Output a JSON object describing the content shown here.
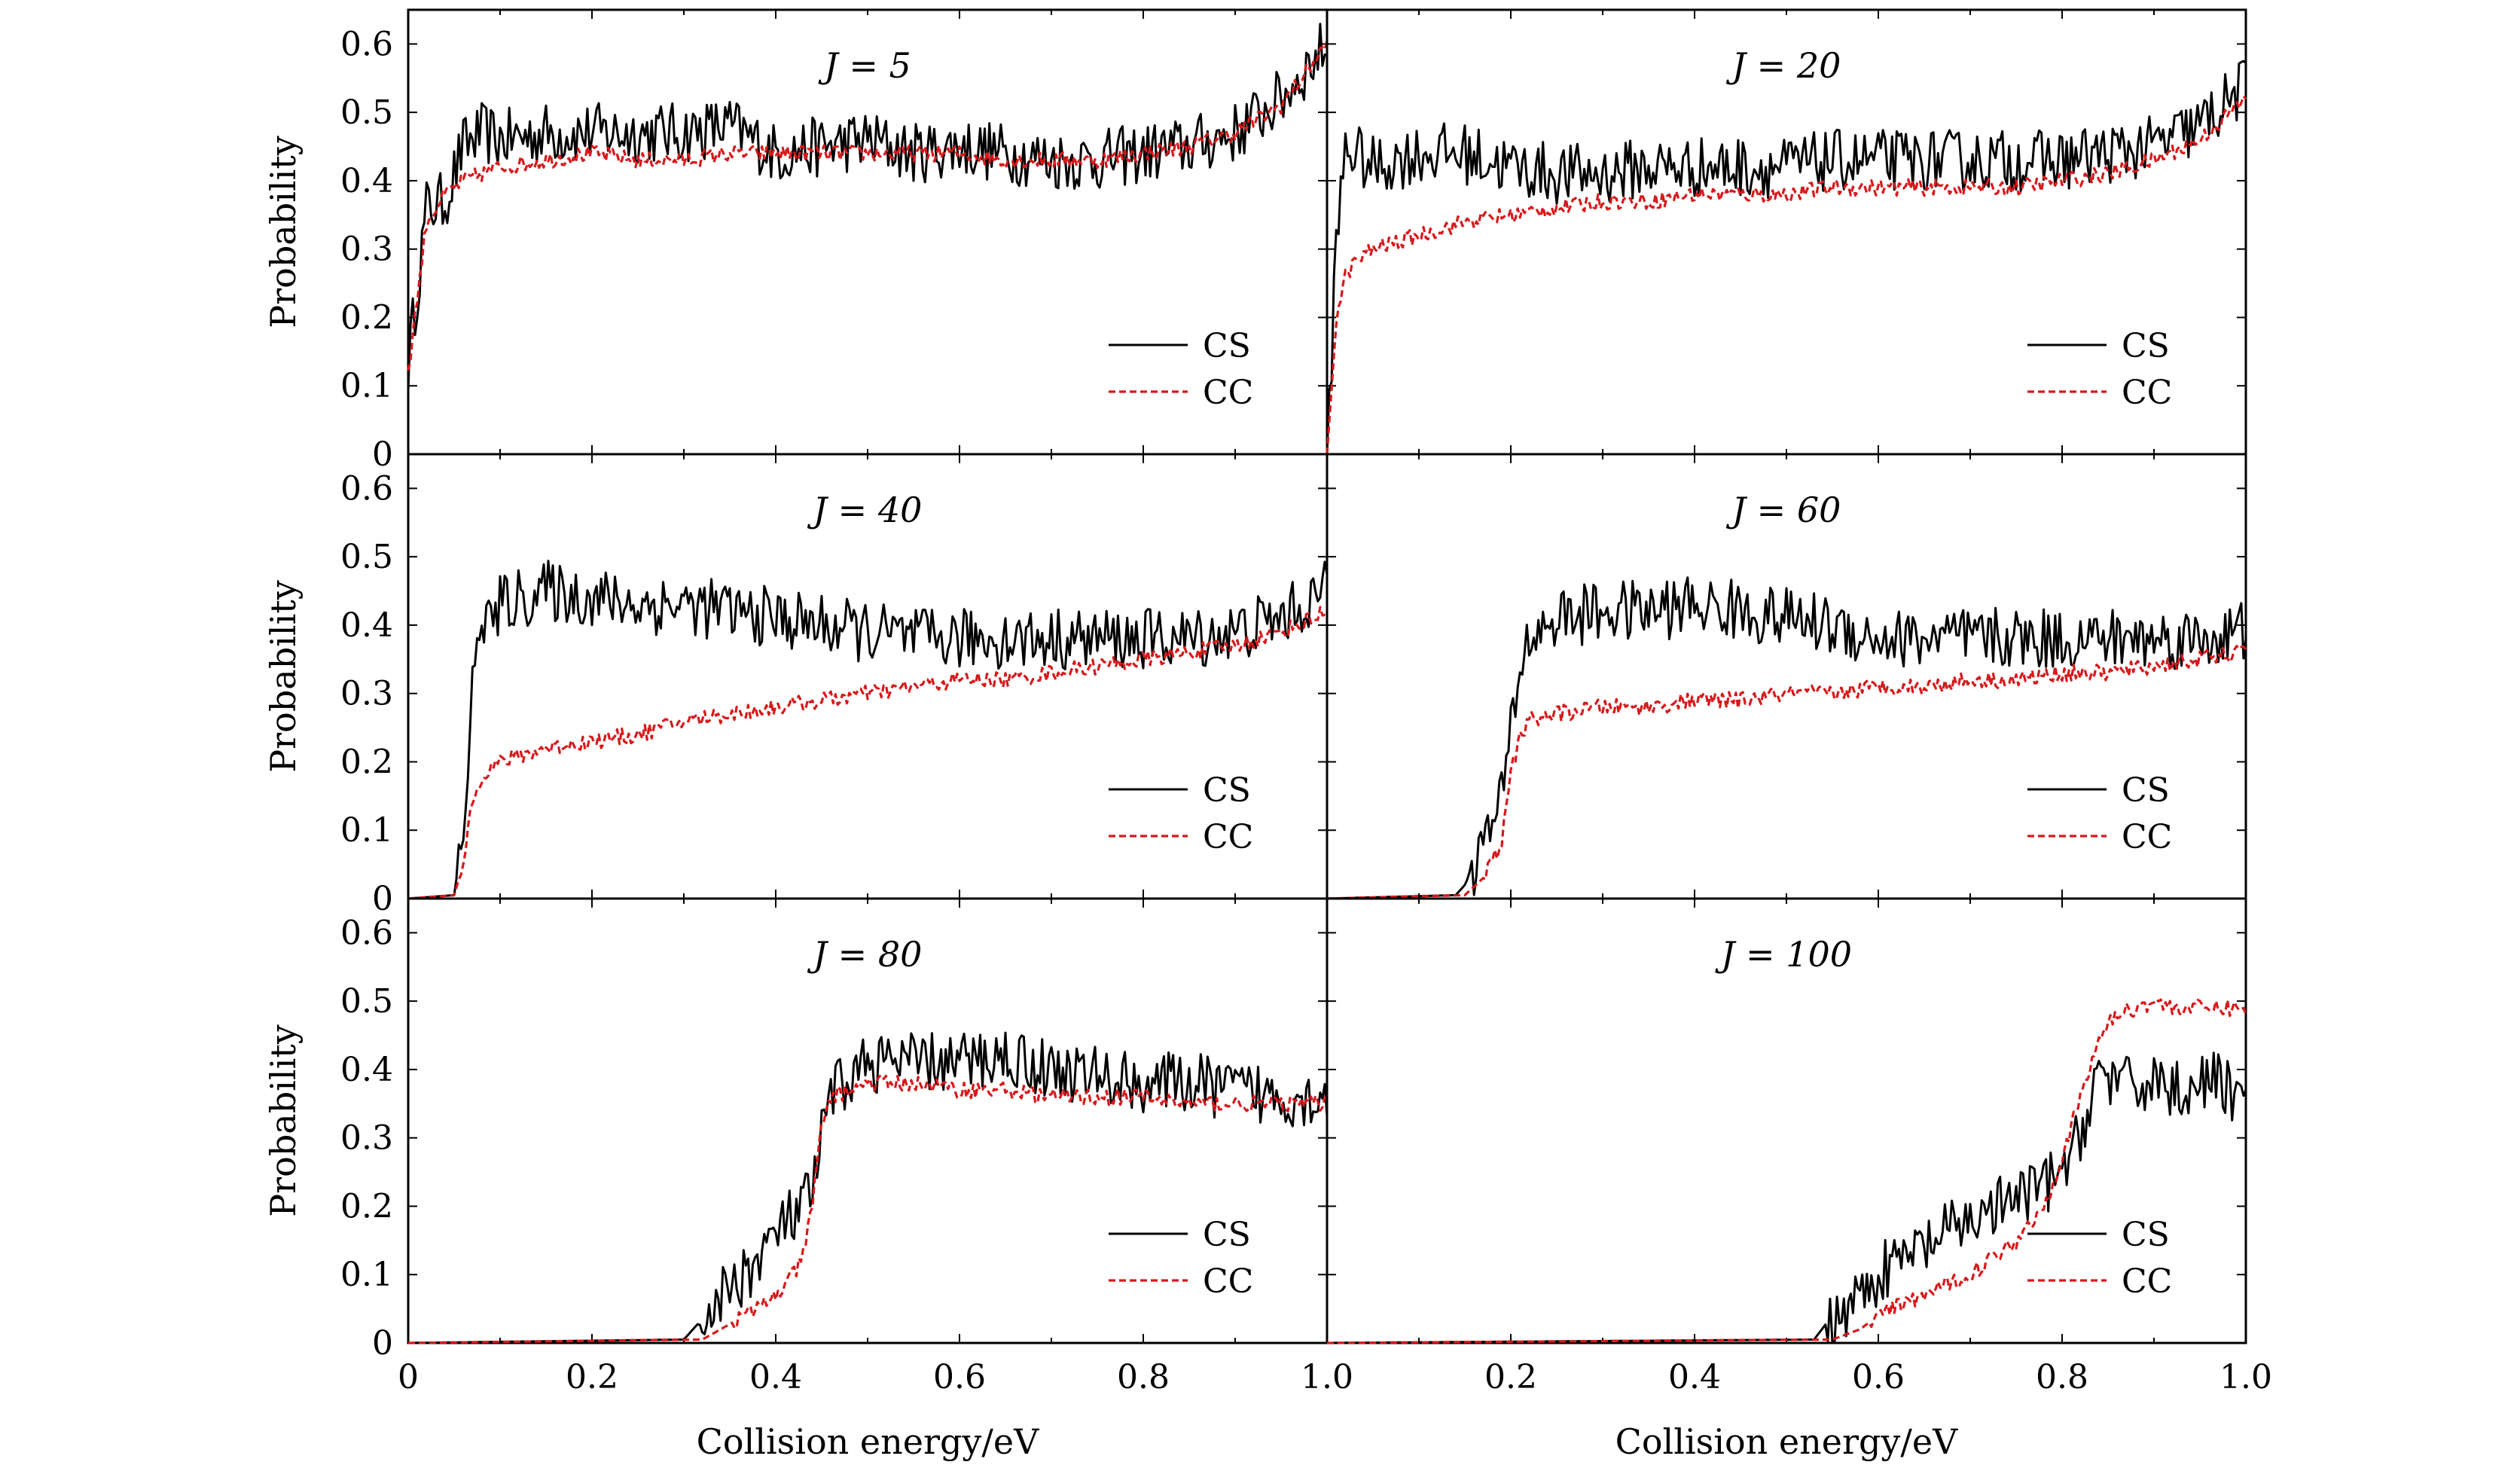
{
  "figure": {
    "ylabel": "Probability",
    "xlabel": "Collision energy/eV",
    "x_ticks": [
      "0",
      "0.2",
      "0.4",
      "0.6",
      "0.8",
      "1.0"
    ],
    "x_ticks_right": [
      "0.2",
      "0.4",
      "0.6",
      "0.8",
      "1.0"
    ],
    "y_ticks": [
      "0",
      "0.1",
      "0.2",
      "0.3",
      "0.4",
      "0.5",
      "0.6"
    ],
    "legend": [
      "CS",
      "CC"
    ],
    "colors": {
      "CS": "#000000",
      "CC": "#d7191c"
    }
  },
  "chart_data": [
    {
      "type": "line",
      "title": "J = 5",
      "xlim": [
        0,
        1
      ],
      "ylim": [
        0,
        0.65
      ],
      "series": [
        {
          "name": "CS",
          "x": [
            0,
            0.02,
            0.04,
            0.06,
            0.08,
            0.1,
            0.15,
            0.2,
            0.25,
            0.3,
            0.35,
            0.4,
            0.45,
            0.5,
            0.55,
            0.6,
            0.65,
            0.7,
            0.75,
            0.8,
            0.85,
            0.9,
            0.95,
            1.0
          ],
          "values": [
            0.13,
            0.36,
            0.37,
            0.45,
            0.47,
            0.46,
            0.47,
            0.47,
            0.47,
            0.47,
            0.48,
            0.44,
            0.45,
            0.46,
            0.44,
            0.45,
            0.44,
            0.43,
            0.43,
            0.44,
            0.45,
            0.47,
            0.52,
            0.6
          ]
        },
        {
          "name": "CC",
          "x": [
            0,
            0.02,
            0.04,
            0.06,
            0.08,
            0.1,
            0.15,
            0.2,
            0.25,
            0.3,
            0.35,
            0.4,
            0.45,
            0.5,
            0.55,
            0.6,
            0.65,
            0.7,
            0.75,
            0.8,
            0.85,
            0.9,
            0.95,
            1.0
          ],
          "values": [
            0.12,
            0.34,
            0.38,
            0.4,
            0.41,
            0.42,
            0.43,
            0.44,
            0.43,
            0.43,
            0.44,
            0.44,
            0.44,
            0.44,
            0.44,
            0.44,
            0.43,
            0.43,
            0.43,
            0.44,
            0.45,
            0.47,
            0.51,
            0.6
          ]
        }
      ]
    },
    {
      "type": "line",
      "title": "J = 20",
      "xlim": [
        0,
        1
      ],
      "ylim": [
        0,
        0.65
      ],
      "series": [
        {
          "name": "CS",
          "x": [
            0,
            0.01,
            0.02,
            0.03,
            0.05,
            0.1,
            0.15,
            0.2,
            0.25,
            0.3,
            0.35,
            0.4,
            0.45,
            0.5,
            0.55,
            0.6,
            0.65,
            0.7,
            0.75,
            0.8,
            0.85,
            0.9,
            0.95,
            1.0
          ],
          "values": [
            0,
            0.3,
            0.45,
            0.44,
            0.42,
            0.44,
            0.44,
            0.42,
            0.41,
            0.41,
            0.42,
            0.42,
            0.42,
            0.42,
            0.43,
            0.43,
            0.43,
            0.43,
            0.43,
            0.43,
            0.44,
            0.45,
            0.48,
            0.54
          ]
        },
        {
          "name": "CC",
          "x": [
            0,
            0.01,
            0.02,
            0.03,
            0.05,
            0.1,
            0.15,
            0.2,
            0.25,
            0.3,
            0.35,
            0.4,
            0.45,
            0.5,
            0.55,
            0.6,
            0.65,
            0.7,
            0.75,
            0.8,
            0.85,
            0.9,
            0.95,
            1.0
          ],
          "values": [
            0,
            0.2,
            0.26,
            0.28,
            0.3,
            0.32,
            0.34,
            0.35,
            0.36,
            0.37,
            0.37,
            0.38,
            0.38,
            0.38,
            0.39,
            0.39,
            0.39,
            0.39,
            0.39,
            0.4,
            0.41,
            0.43,
            0.46,
            0.52
          ]
        }
      ]
    },
    {
      "type": "line",
      "title": "J = 40",
      "xlim": [
        0,
        1
      ],
      "ylim": [
        0,
        0.65
      ],
      "series": [
        {
          "name": "CS",
          "x": [
            0,
            0.05,
            0.06,
            0.07,
            0.08,
            0.09,
            0.1,
            0.15,
            0.2,
            0.25,
            0.3,
            0.35,
            0.4,
            0.45,
            0.5,
            0.55,
            0.6,
            0.65,
            0.7,
            0.75,
            0.8,
            0.85,
            0.9,
            0.95,
            1.0
          ],
          "values": [
            0,
            0.005,
            0.1,
            0.3,
            0.42,
            0.4,
            0.43,
            0.45,
            0.44,
            0.43,
            0.43,
            0.42,
            0.41,
            0.4,
            0.39,
            0.38,
            0.38,
            0.38,
            0.38,
            0.38,
            0.38,
            0.38,
            0.39,
            0.41,
            0.45
          ]
        },
        {
          "name": "CC",
          "x": [
            0,
            0.05,
            0.06,
            0.07,
            0.08,
            0.09,
            0.1,
            0.15,
            0.2,
            0.25,
            0.3,
            0.35,
            0.4,
            0.45,
            0.5,
            0.55,
            0.6,
            0.65,
            0.7,
            0.75,
            0.8,
            0.85,
            0.9,
            0.95,
            1.0
          ],
          "values": [
            0,
            0.005,
            0.05,
            0.15,
            0.18,
            0.19,
            0.2,
            0.22,
            0.23,
            0.24,
            0.26,
            0.27,
            0.28,
            0.29,
            0.3,
            0.31,
            0.32,
            0.32,
            0.33,
            0.34,
            0.35,
            0.36,
            0.37,
            0.39,
            0.42
          ]
        }
      ]
    },
    {
      "type": "line",
      "title": "J = 60",
      "xlim": [
        0,
        1
      ],
      "ylim": [
        0,
        0.65
      ],
      "series": [
        {
          "name": "CS",
          "x": [
            0,
            0.14,
            0.15,
            0.17,
            0.19,
            0.2,
            0.21,
            0.22,
            0.25,
            0.3,
            0.35,
            0.4,
            0.45,
            0.5,
            0.55,
            0.6,
            0.65,
            0.7,
            0.75,
            0.8,
            0.85,
            0.9,
            0.95,
            1.0
          ],
          "values": [
            0,
            0.005,
            0.02,
            0.08,
            0.14,
            0.25,
            0.34,
            0.38,
            0.41,
            0.42,
            0.42,
            0.43,
            0.42,
            0.41,
            0.4,
            0.38,
            0.38,
            0.38,
            0.38,
            0.38,
            0.38,
            0.38,
            0.38,
            0.39
          ]
        },
        {
          "name": "CC",
          "x": [
            0,
            0.15,
            0.17,
            0.19,
            0.2,
            0.21,
            0.22,
            0.25,
            0.3,
            0.35,
            0.4,
            0.45,
            0.5,
            0.55,
            0.6,
            0.65,
            0.7,
            0.75,
            0.8,
            0.85,
            0.9,
            0.95,
            1.0
          ],
          "values": [
            0,
            0.005,
            0.03,
            0.08,
            0.18,
            0.24,
            0.26,
            0.27,
            0.28,
            0.28,
            0.29,
            0.29,
            0.3,
            0.3,
            0.31,
            0.31,
            0.32,
            0.32,
            0.33,
            0.33,
            0.34,
            0.35,
            0.36
          ]
        }
      ]
    },
    {
      "type": "line",
      "title": "J = 80",
      "xlim": [
        0,
        1
      ],
      "ylim": [
        0,
        0.65
      ],
      "series": [
        {
          "name": "CS",
          "x": [
            0,
            0.3,
            0.31,
            0.33,
            0.35,
            0.38,
            0.4,
            0.43,
            0.44,
            0.45,
            0.46,
            0.48,
            0.5,
            0.55,
            0.6,
            0.65,
            0.7,
            0.75,
            0.8,
            0.85,
            0.9,
            0.95,
            1.0
          ],
          "values": [
            0,
            0.005,
            0.02,
            0.05,
            0.08,
            0.12,
            0.16,
            0.2,
            0.22,
            0.3,
            0.36,
            0.39,
            0.41,
            0.41,
            0.41,
            0.42,
            0.4,
            0.39,
            0.38,
            0.38,
            0.37,
            0.36,
            0.36
          ]
        },
        {
          "name": "CC",
          "x": [
            0,
            0.32,
            0.34,
            0.36,
            0.38,
            0.4,
            0.42,
            0.43,
            0.44,
            0.45,
            0.46,
            0.48,
            0.5,
            0.55,
            0.6,
            0.65,
            0.7,
            0.75,
            0.8,
            0.85,
            0.9,
            0.95,
            1.0
          ],
          "values": [
            0,
            0.005,
            0.02,
            0.035,
            0.05,
            0.07,
            0.1,
            0.13,
            0.2,
            0.32,
            0.36,
            0.37,
            0.38,
            0.38,
            0.37,
            0.37,
            0.36,
            0.36,
            0.36,
            0.35,
            0.35,
            0.35,
            0.35
          ]
        }
      ]
    },
    {
      "type": "line",
      "title": "J = 100",
      "xlim": [
        0,
        1
      ],
      "ylim": [
        0,
        0.65
      ],
      "series": [
        {
          "name": "CS",
          "x": [
            0,
            0.53,
            0.55,
            0.58,
            0.6,
            0.65,
            0.7,
            0.75,
            0.78,
            0.8,
            0.82,
            0.83,
            0.84,
            0.86,
            0.88,
            0.9,
            0.92,
            0.95,
            0.98,
            1.0
          ],
          "values": [
            0,
            0.005,
            0.04,
            0.07,
            0.1,
            0.14,
            0.18,
            0.21,
            0.23,
            0.25,
            0.3,
            0.36,
            0.4,
            0.38,
            0.37,
            0.39,
            0.37,
            0.38,
            0.38,
            0.34
          ]
        },
        {
          "name": "CC",
          "x": [
            0,
            0.55,
            0.58,
            0.6,
            0.65,
            0.7,
            0.75,
            0.78,
            0.8,
            0.82,
            0.84,
            0.85,
            0.86,
            0.88,
            0.9,
            0.92,
            0.95,
            0.98,
            1.0
          ],
          "values": [
            0,
            0.005,
            0.02,
            0.04,
            0.07,
            0.1,
            0.15,
            0.2,
            0.27,
            0.36,
            0.44,
            0.47,
            0.48,
            0.49,
            0.5,
            0.49,
            0.49,
            0.49,
            0.49
          ]
        }
      ]
    }
  ]
}
